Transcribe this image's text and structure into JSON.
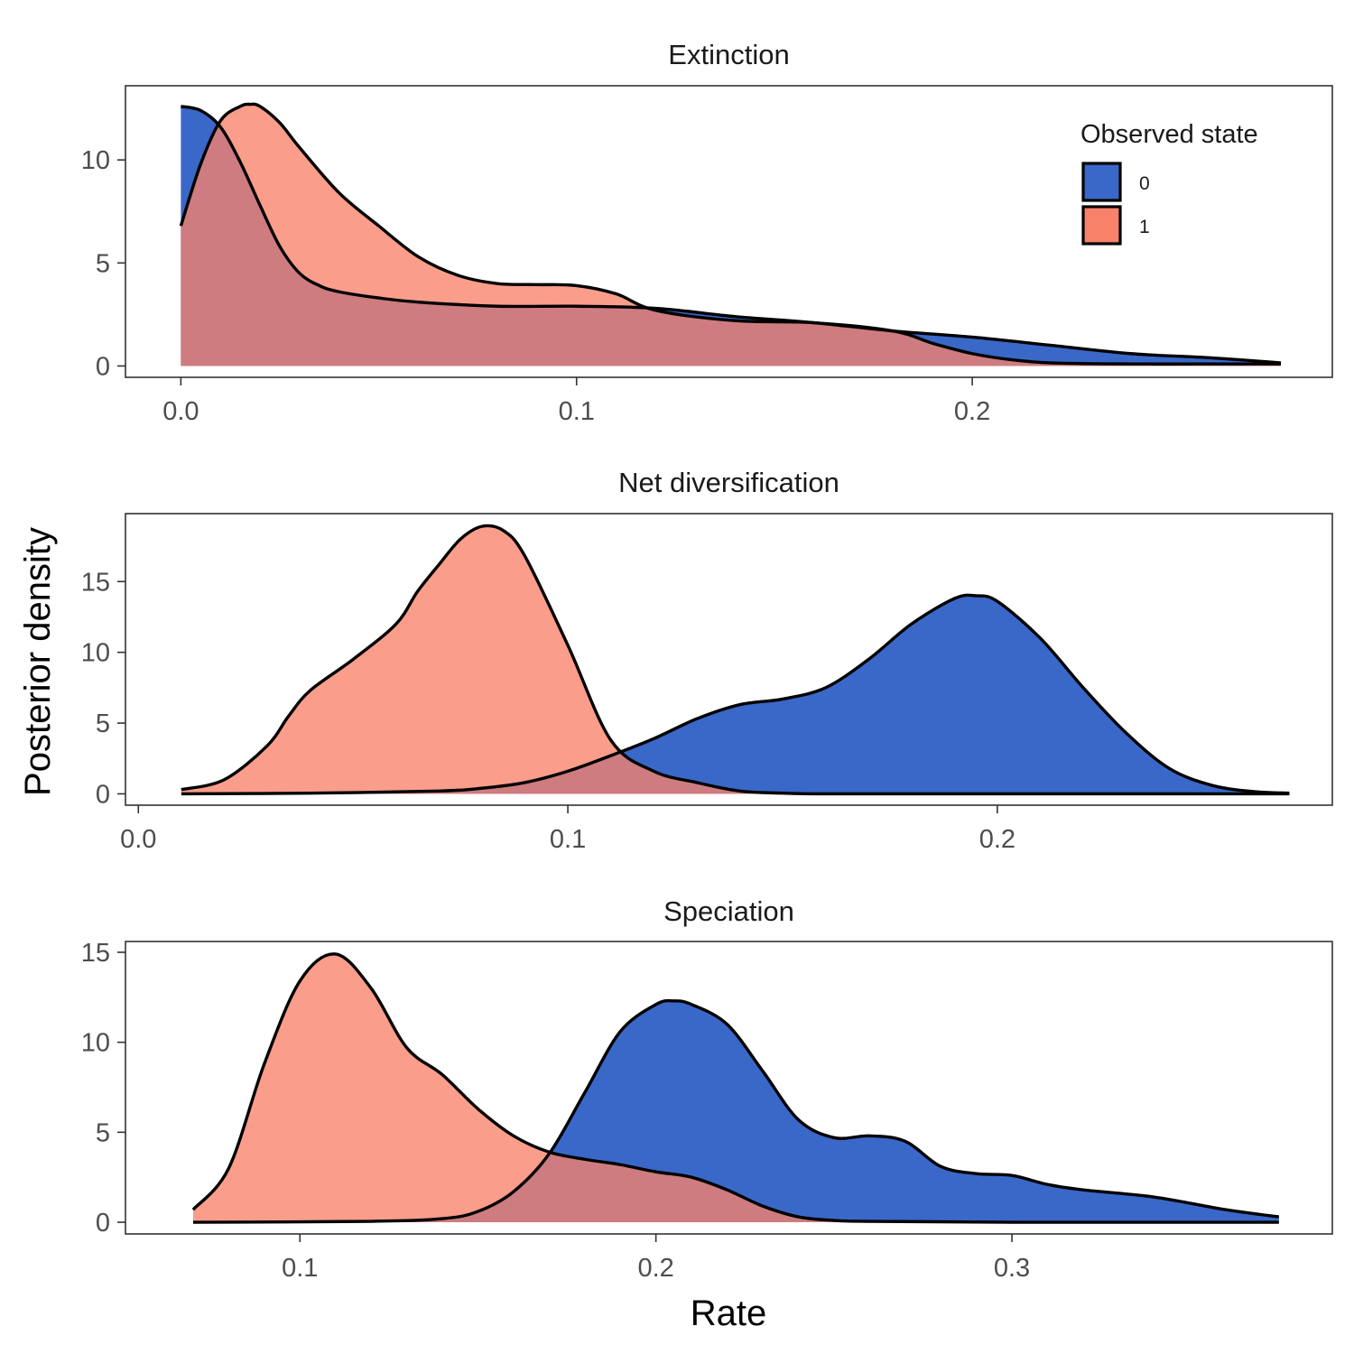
{
  "chart_data": {
    "type": "area",
    "chart_kind": "density plot (3 stacked facets)",
    "ylabel": "Posterior density",
    "xlabel": "Rate",
    "grid": false,
    "legend": {
      "title": "Observed state",
      "placement": "top-right inside first panel",
      "entries": [
        {
          "label": "0",
          "color": "#3a68c8"
        },
        {
          "label": "1",
          "color": "#f8826a"
        }
      ]
    },
    "colors": {
      "state_0": "#3a68c8",
      "state_1": "#f8826a",
      "overlap": "#d06058",
      "outline": "#000000"
    },
    "panels": [
      {
        "title": "Extinction",
        "xlim": [
          -0.014,
          0.291
        ],
        "ylim": [
          -0.55,
          13.6
        ],
        "xticks": [
          0.0,
          0.1,
          0.2
        ],
        "xtick_labels": [
          "0.0",
          "0.1",
          "0.2"
        ],
        "yticks": [
          0,
          5,
          10
        ],
        "ytick_labels": [
          "0",
          "5",
          "10"
        ],
        "series": [
          {
            "name": "0",
            "x": [
              0.0,
              0.005,
              0.01,
              0.015,
              0.02,
              0.025,
              0.03,
              0.035,
              0.04,
              0.05,
              0.06,
              0.08,
              0.1,
              0.12,
              0.14,
              0.16,
              0.18,
              0.2,
              0.22,
              0.24,
              0.26,
              0.278
            ],
            "y": [
              12.6,
              12.4,
              11.6,
              9.9,
              7.8,
              5.8,
              4.5,
              3.9,
              3.6,
              3.3,
              3.1,
              2.9,
              2.9,
              2.8,
              2.4,
              2.1,
              1.7,
              1.4,
              1.0,
              0.6,
              0.4,
              0.15
            ]
          },
          {
            "name": "1",
            "x": [
              0.0,
              0.005,
              0.01,
              0.015,
              0.0175,
              0.02,
              0.025,
              0.03,
              0.04,
              0.05,
              0.06,
              0.07,
              0.08,
              0.09,
              0.1,
              0.11,
              0.12,
              0.14,
              0.16,
              0.18,
              0.19,
              0.2,
              0.21,
              0.22,
              0.24,
              0.26,
              0.278
            ],
            "y": [
              6.8,
              9.8,
              11.9,
              12.6,
              12.7,
              12.6,
              11.8,
              10.6,
              8.4,
              6.8,
              5.3,
              4.4,
              4.0,
              3.95,
              3.9,
              3.5,
              2.7,
              2.2,
              2.1,
              1.7,
              1.1,
              0.6,
              0.3,
              0.15,
              0.1,
              0.1,
              0.1
            ]
          }
        ]
      },
      {
        "title": "Net diversification",
        "xlim": [
          -0.003,
          0.278
        ],
        "ylim": [
          -0.8,
          19.8
        ],
        "xticks": [
          0.0,
          0.1,
          0.2
        ],
        "xtick_labels": [
          "0.0",
          "0.1",
          "0.2"
        ],
        "yticks": [
          0,
          5,
          10,
          15
        ],
        "ytick_labels": [
          "0",
          "5",
          "10",
          "15"
        ],
        "series": [
          {
            "name": "0",
            "x": [
              0.01,
              0.04,
              0.07,
              0.08,
              0.09,
              0.1,
              0.11,
              0.12,
              0.13,
              0.14,
              0.15,
              0.16,
              0.17,
              0.18,
              0.19,
              0.195,
              0.2,
              0.21,
              0.22,
              0.23,
              0.24,
              0.25,
              0.26,
              0.268
            ],
            "y": [
              0.0,
              0.05,
              0.2,
              0.4,
              0.8,
              1.6,
              2.7,
              3.9,
              5.3,
              6.3,
              6.7,
              7.5,
              9.5,
              12.0,
              13.8,
              14.0,
              13.6,
              11.0,
              7.5,
              4.3,
              1.8,
              0.6,
              0.15,
              0.05
            ]
          },
          {
            "name": "1",
            "x": [
              0.01,
              0.02,
              0.03,
              0.035,
              0.04,
              0.05,
              0.06,
              0.065,
              0.07,
              0.075,
              0.08,
              0.085,
              0.09,
              0.1,
              0.11,
              0.12,
              0.13,
              0.14,
              0.15,
              0.16,
              0.2,
              0.268
            ],
            "y": [
              0.3,
              1.0,
              3.4,
              5.5,
              7.3,
              9.5,
              12.0,
              14.3,
              16.2,
              18.0,
              18.9,
              18.6,
              16.8,
              10.5,
              3.8,
              1.6,
              0.8,
              0.2,
              0.05,
              0.0,
              0.0,
              0.0
            ]
          }
        ]
      },
      {
        "title": "Speciation",
        "xlim": [
          0.051,
          0.39
        ],
        "ylim": [
          -0.65,
          15.6
        ],
        "xticks": [
          0.1,
          0.2,
          0.3
        ],
        "xtick_labels": [
          "0.1",
          "0.2",
          "0.3"
        ],
        "yticks": [
          0,
          5,
          10,
          15
        ],
        "ytick_labels": [
          "0",
          "5",
          "10",
          "15"
        ],
        "series": [
          {
            "name": "0",
            "x": [
              0.07,
              0.12,
              0.14,
              0.15,
              0.16,
              0.17,
              0.18,
              0.19,
              0.2,
              0.205,
              0.21,
              0.22,
              0.23,
              0.24,
              0.25,
              0.26,
              0.27,
              0.28,
              0.29,
              0.3,
              0.31,
              0.32,
              0.34,
              0.36,
              0.375
            ],
            "y": [
              0.0,
              0.05,
              0.2,
              0.6,
              1.7,
              3.8,
              7.2,
              10.6,
              12.1,
              12.3,
              12.1,
              11.0,
              8.4,
              5.7,
              4.7,
              4.8,
              4.5,
              3.1,
              2.7,
              2.6,
              2.1,
              1.8,
              1.4,
              0.7,
              0.3
            ]
          },
          {
            "name": "1",
            "x": [
              0.07,
              0.08,
              0.09,
              0.1,
              0.11,
              0.12,
              0.13,
              0.14,
              0.15,
              0.16,
              0.17,
              0.18,
              0.19,
              0.2,
              0.21,
              0.22,
              0.23,
              0.24,
              0.25,
              0.26,
              0.3,
              0.375
            ],
            "y": [
              0.7,
              3.0,
              8.8,
              13.4,
              14.9,
              13.0,
              9.7,
              8.2,
              6.3,
              4.8,
              3.9,
              3.5,
              3.2,
              2.8,
              2.5,
              1.8,
              0.9,
              0.3,
              0.1,
              0.05,
              0.0,
              0.0
            ]
          }
        ]
      }
    ]
  }
}
